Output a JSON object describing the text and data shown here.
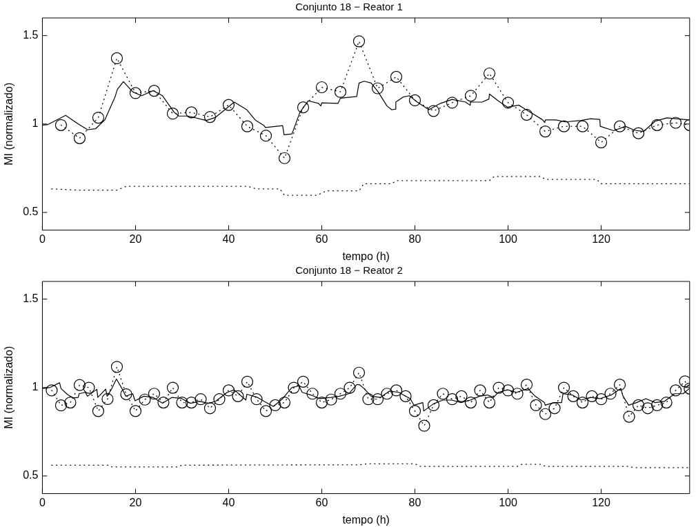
{
  "chart_data": [
    {
      "type": "line",
      "title": "Conjunto 18 − Reator 1",
      "xlabel": "tempo (h)",
      "ylabel": "MI (normalizado)",
      "xlim": [
        0,
        139
      ],
      "xticks": [
        0,
        20,
        40,
        60,
        80,
        100,
        120
      ],
      "ylim": [
        0.4,
        1.6
      ],
      "yticks": [
        0.5,
        1,
        1.5
      ],
      "grid": false,
      "legend": false,
      "series": [
        {
          "type": "line",
          "color": "#000000",
          "marker": "circle",
          "line_style": "dotted",
          "x": [
            4,
            8,
            12,
            16,
            20,
            24,
            28,
            32,
            36,
            40,
            44,
            48,
            52,
            56,
            60,
            64,
            68,
            72,
            76,
            80,
            84,
            88,
            92,
            96,
            100,
            104,
            108,
            112,
            116,
            120,
            124,
            128,
            132,
            136,
            139
          ],
          "values": [
            0.994,
            0.92,
            1.036,
            1.372,
            1.175,
            1.188,
            1.059,
            1.066,
            1.04,
            1.108,
            0.987,
            0.934,
            0.807,
            1.094,
            1.208,
            1.182,
            1.468,
            1.202,
            1.267,
            1.134,
            1.074,
            1.121,
            1.16,
            1.286,
            1.121,
            1.052,
            0.958,
            0.987,
            0.987,
            0.896,
            0.987,
            0.948,
            0.994,
            1.007,
            0.994
          ]
        },
        {
          "type": "line",
          "color": "#000000",
          "marker": "none",
          "line_style": "solid",
          "x": [
            0,
            1.2,
            5,
            7.7,
            9.7,
            11.4,
            13.4,
            15.6,
            16.1,
            17.4,
            19.4,
            21.3,
            23.8,
            25.8,
            28.3,
            29.3,
            31.3,
            35.2,
            37.2,
            41.2,
            43.9,
            45.7,
            47.6,
            47.9,
            51.6,
            51.9,
            53.6,
            55.3,
            57.1,
            59.3,
            59.8,
            60,
            63.5,
            64,
            67.5,
            68,
            69.1,
            70.6,
            72.1,
            74,
            75,
            75.8,
            75.9,
            77.5,
            78.8,
            80.5,
            83,
            85.5,
            88,
            90.9,
            91.8,
            91.9,
            94.4,
            95.9,
            96,
            97.9,
            99.9,
            102.3,
            104.3,
            107.3,
            107.9,
            108,
            110.3,
            112.3,
            115.7,
            117.7,
            119.7,
            119.8,
            122.7,
            125.2,
            127.1,
            129.1,
            131.6,
            134.1,
            138.9
          ],
          "values": [
            0.994,
            0.997,
            1.049,
            1.0,
            0.968,
            0.973,
            1.023,
            1.153,
            1.196,
            1.24,
            1.182,
            1.16,
            1.189,
            1.16,
            1.066,
            1.045,
            1.045,
            1.02,
            1.038,
            1.124,
            1.081,
            1.023,
            0.991,
            0.98,
            0.991,
            0.939,
            0.944,
            1.066,
            1.131,
            1.117,
            1.102,
            1.12,
            1.117,
            1.146,
            1.156,
            1.232,
            1.242,
            1.232,
            1.182,
            1.102,
            1.081,
            1.084,
            1.124,
            1.153,
            1.16,
            1.124,
            1.081,
            1.117,
            1.139,
            1.124,
            1.107,
            1.124,
            1.124,
            1.141,
            1.17,
            1.131,
            1.095,
            1.107,
            1.074,
            1.026,
            1.009,
            1.023,
            1.023,
            1.012,
            1.02,
            1.03,
            1.026,
            0.987,
            0.962,
            0.987,
            0.965,
            0.958,
            1.016,
            1.035,
            1.023
          ]
        },
        {
          "type": "line",
          "color": "#000000",
          "marker": "none",
          "line_style": "dotted",
          "x": [
            2,
            8,
            16,
            18,
            44,
            46,
            51,
            52,
            59,
            61,
            68,
            69,
            75,
            76,
            96,
            97,
            107,
            108,
            119,
            120,
            139
          ],
          "values": [
            0.633,
            0.626,
            0.626,
            0.648,
            0.648,
            0.633,
            0.633,
            0.597,
            0.597,
            0.622,
            0.622,
            0.662,
            0.662,
            0.68,
            0.68,
            0.703,
            0.703,
            0.687,
            0.687,
            0.662,
            0.662
          ]
        }
      ]
    },
    {
      "type": "line",
      "title": "Conjunto 18 − Reator 2",
      "xlabel": "tempo (h)",
      "ylabel": "MI (normalizado)",
      "xlim": [
        0,
        139
      ],
      "xticks": [
        0,
        20,
        40,
        60,
        80,
        100,
        120
      ],
      "ylim": [
        0.4,
        1.6
      ],
      "yticks": [
        0.5,
        1,
        1.5
      ],
      "grid": false,
      "legend": false,
      "series": [
        {
          "type": "line",
          "color": "#000000",
          "marker": "circle",
          "line_style": "dotted",
          "x": [
            2,
            4,
            6,
            8,
            10,
            12,
            14,
            16,
            18,
            20,
            22,
            24,
            26,
            28,
            30,
            32,
            34,
            36,
            38,
            40,
            42,
            44,
            46,
            48,
            50,
            52,
            54,
            56,
            58,
            60,
            62,
            64,
            66,
            68,
            70,
            72,
            74,
            76,
            78,
            80,
            82,
            84,
            86,
            88,
            90,
            92,
            94,
            96,
            98,
            100,
            102,
            104,
            106,
            108,
            110,
            112,
            114,
            116,
            118,
            120,
            122,
            124,
            126,
            128,
            130,
            132,
            134,
            136,
            138,
            139
          ],
          "values": [
            0.984,
            0.899,
            0.915,
            1.014,
            0.999,
            0.867,
            0.935,
            1.117,
            0.962,
            0.867,
            0.932,
            0.965,
            0.915,
            0.999,
            0.915,
            0.915,
            0.934,
            0.883,
            0.934,
            0.984,
            0.951,
            1.033,
            0.934,
            0.867,
            0.9,
            0.915,
            0.999,
            1.033,
            0.965,
            0.915,
            0.932,
            0.965,
            0.999,
            1.084,
            0.934,
            0.934,
            0.965,
            0.984,
            0.951,
            0.867,
            0.784,
            0.9,
            0.965,
            0.934,
            0.951,
            0.915,
            0.984,
            0.915,
            0.999,
            0.984,
            0.965,
            1.016,
            0.9,
            0.85,
            0.883,
            0.999,
            0.951,
            0.915,
            0.951,
            0.934,
            0.965,
            1.016,
            0.835,
            0.9,
            0.883,
            0.9,
            0.915,
            0.984,
            1.035,
            0.994
          ]
        },
        {
          "type": "line",
          "color": "#000000",
          "marker": "none",
          "line_style": "solid",
          "x": [
            0,
            1.7,
            3.7,
            4,
            5.5,
            6.7,
            7.7,
            7.9,
            9.2,
            9.7,
            11.7,
            11.9,
            13.6,
            13.9,
            14.9,
            15.9,
            17.1,
            17.9,
            19.4,
            19.9,
            21.8,
            23.8,
            25.8,
            27.8,
            29.8,
            31.8,
            33.8,
            35.7,
            37.2,
            39.7,
            41.2,
            43.7,
            43.9,
            46.2,
            47.6,
            49.6,
            51.6,
            53.6,
            55.1,
            55.8,
            57.6,
            59.6,
            62,
            63.8,
            65.8,
            67.5,
            68.1,
            69.1,
            70.6,
            72.6,
            74.5,
            76.5,
            79,
            79.8,
            81.7,
            81.9,
            84,
            86,
            87.9,
            89.9,
            91.9,
            93.9,
            95.6,
            96.9,
            97.9,
            99.9,
            101.8,
            104.3,
            105.8,
            107.8,
            108,
            109.8,
            111.5,
            111.8,
            113.8,
            115.7,
            117.7,
            119.7,
            122.2,
            124.2,
            124.7,
            125.9,
            127.6,
            129.6,
            131.6,
            133.6,
            135.8,
            137.6,
            138.9
          ],
          "values": [
            0.994,
            1.001,
            1.027,
            0.994,
            0.958,
            0.941,
            0.944,
            0.965,
            0.973,
            0.951,
            0.99,
            0.944,
            0.991,
            0.951,
            0.994,
            1.048,
            0.994,
            0.951,
            0.965,
            0.925,
            0.951,
            0.944,
            0.911,
            0.944,
            0.939,
            0.911,
            0.922,
            0.911,
            0.922,
            0.973,
            0.987,
            0.929,
            0.962,
            0.944,
            0.922,
            0.893,
            0.937,
            1.001,
            1.009,
            0.973,
            0.958,
            0.937,
            0.944,
            0.951,
            0.965,
            1.016,
            1.016,
            0.994,
            0.951,
            0.944,
            0.98,
            0.973,
            0.937,
            0.9,
            0.915,
            0.867,
            0.908,
            0.929,
            0.929,
            0.915,
            0.929,
            0.951,
            0.958,
            0.944,
            0.973,
            0.987,
            0.973,
            0.994,
            0.951,
            0.915,
            0.9,
            0.915,
            0.915,
            0.965,
            0.958,
            0.929,
            0.944,
            0.937,
            0.958,
            0.994,
            0.951,
            0.9,
            0.915,
            0.937,
            0.915,
            0.922,
            0.965,
            0.965,
            0.994
          ]
        },
        {
          "type": "line",
          "color": "#000000",
          "marker": "none",
          "line_style": "dotted",
          "x": [
            2,
            14,
            15,
            29,
            30,
            68,
            70,
            80,
            81,
            102,
            103,
            107,
            108,
            126,
            127,
            139
          ],
          "values": [
            0.561,
            0.561,
            0.551,
            0.551,
            0.561,
            0.563,
            0.569,
            0.569,
            0.554,
            0.554,
            0.566,
            0.566,
            0.554,
            0.554,
            0.547,
            0.547
          ]
        }
      ]
    }
  ]
}
